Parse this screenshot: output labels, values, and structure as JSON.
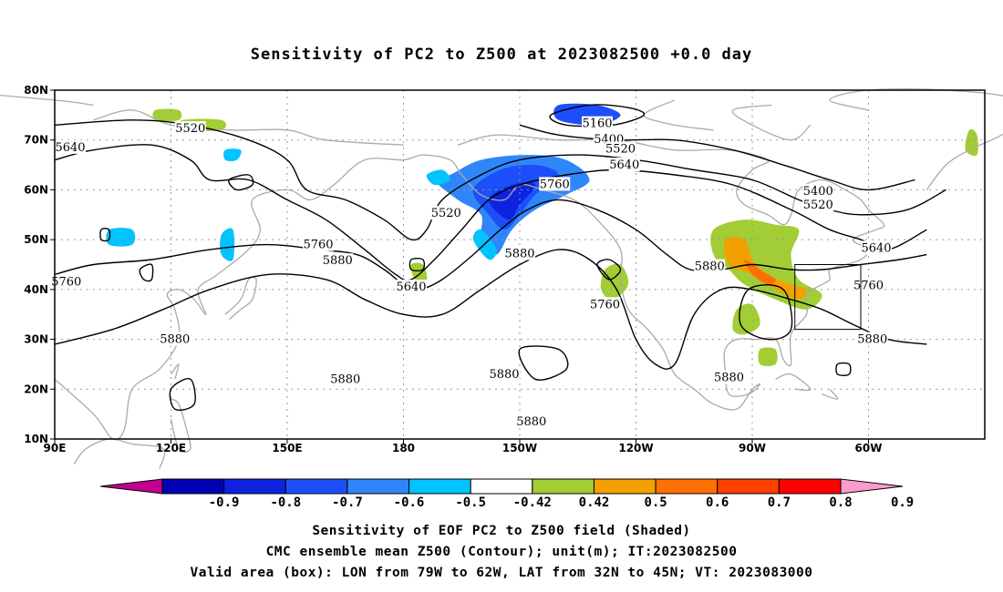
{
  "title": "Sensitivity of PC2 to Z500 at 2023082500 +0.0 day",
  "map": {
    "lat_ticks": [
      "80N",
      "70N",
      "60N",
      "50N",
      "40N",
      "30N",
      "20N",
      "10N"
    ],
    "lon_ticks": [
      "90E",
      "120E",
      "150E",
      "180",
      "150W",
      "120W",
      "90W",
      "60W"
    ],
    "contour_labels": [
      {
        "text": "5520",
        "lat": 72.3,
        "lon": 125
      },
      {
        "text": "5640",
        "lat": 68.5,
        "lon": 94
      },
      {
        "text": "5160",
        "lat": 73.3,
        "lon": -130
      },
      {
        "text": "5400",
        "lat": 70.1,
        "lon": -127
      },
      {
        "text": "5520",
        "lat": 68.2,
        "lon": -124
      },
      {
        "text": "5640",
        "lat": 65.0,
        "lon": -123
      },
      {
        "text": "5760",
        "lat": 61.1,
        "lon": -141
      },
      {
        "text": "5520",
        "lat": 55.3,
        "lon": -169
      },
      {
        "text": "5760",
        "lat": 49.0,
        "lon": 158
      },
      {
        "text": "5880",
        "lat": 45.8,
        "lon": 163
      },
      {
        "text": "5640",
        "lat": 40.5,
        "lon": -178
      },
      {
        "text": "5880",
        "lat": 47.2,
        "lon": -150
      },
      {
        "text": "5760",
        "lat": 37.0,
        "lon": -128
      },
      {
        "text": "5880",
        "lat": 44.6,
        "lon": -101
      },
      {
        "text": "5760",
        "lat": 40.8,
        "lon": -60
      },
      {
        "text": "5760",
        "lat": 41.5,
        "lon": 93
      },
      {
        "text": "5880",
        "lat": 30.0,
        "lon": 121
      },
      {
        "text": "5880",
        "lat": 22.0,
        "lon": 165
      },
      {
        "text": "5880",
        "lat": 23.0,
        "lon": -154
      },
      {
        "text": "5880",
        "lat": 13.5,
        "lon": -147
      },
      {
        "text": "5880",
        "lat": 22.3,
        "lon": -96
      },
      {
        "text": "5880",
        "lat": 30.0,
        "lon": -59
      },
      {
        "text": "5400",
        "lat": 59.7,
        "lon": -73
      },
      {
        "text": "5520",
        "lat": 57.0,
        "lon": -73
      },
      {
        "text": "5640",
        "lat": 48.3,
        "lon": -58
      }
    ],
    "valid_box": {
      "lon_min": -79,
      "lon_max": -62,
      "lat_min": 32,
      "lat_max": 45
    }
  },
  "colorbar": {
    "labels": [
      "-0.9",
      "-0.8",
      "-0.7",
      "-0.6",
      "-0.5",
      "-0.42",
      "0.42",
      "0.5",
      "0.6",
      "0.7",
      "0.8",
      "0.9"
    ],
    "colors": [
      "#c2008f",
      "#0000b4",
      "#0d23e0",
      "#1c4ffa",
      "#2f86fb",
      "#00c3ff",
      "#ffffff",
      "#a2cd34",
      "#f4a000",
      "#ff7000",
      "#fe4000",
      "#ff0000",
      "#fc9ccc"
    ]
  },
  "captions": {
    "line1": "Sensitivity of EOF PC2 to Z500 field (Shaded)",
    "line2": "CMC ensemble mean Z500 (Contour); unit(m); IT:2023082500",
    "line3": "Valid area (box): LON from 79W to 62W, LAT from 32N to 45N; VT: 2023083000"
  }
}
